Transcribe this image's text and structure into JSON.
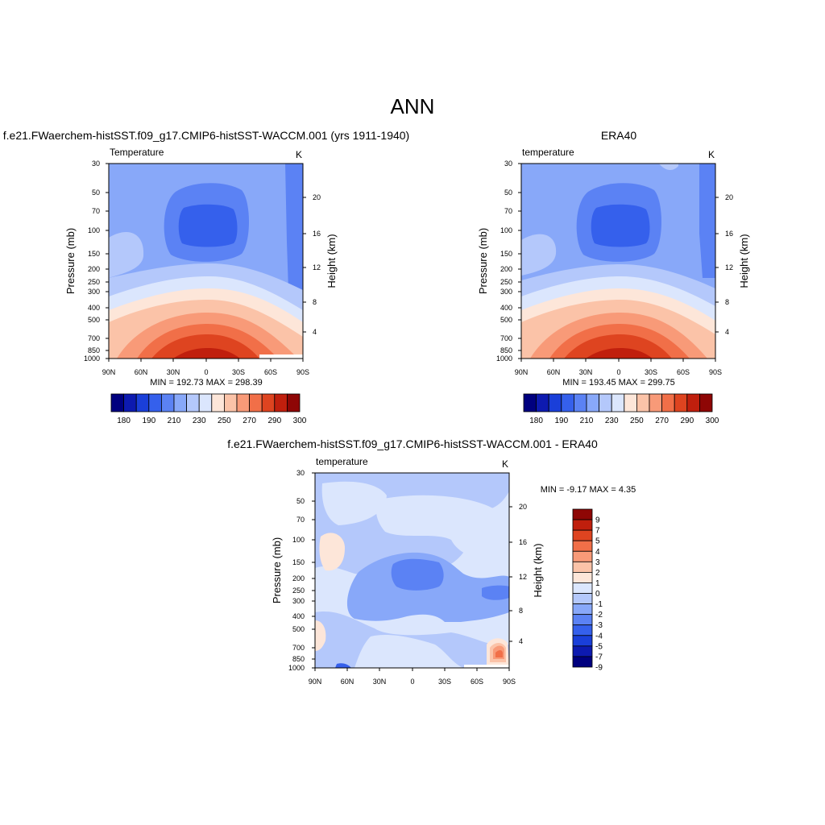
{
  "title": "ANN",
  "chart_data": [
    {
      "type": "heatmap",
      "title": "f.e21.FWaerchem-histSST.f09_g17.CMIP6-histSST-WACCM.001 (yrs 1911-1940)",
      "subtitle_left": "Temperature",
      "subtitle_right": "K",
      "ylabel": "Pressure (mb)",
      "y2label": "Height (km)",
      "xticks": [
        "90N",
        "60N",
        "30N",
        "0",
        "30S",
        "60S",
        "90S"
      ],
      "yticks": [
        "30",
        "50",
        "70",
        "100",
        "150",
        "200",
        "250",
        "300",
        "400",
        "500",
        "700",
        "850",
        "1000"
      ],
      "y2ticks": [
        "20",
        "16",
        "12",
        "8",
        "4"
      ],
      "stats": "MIN = 192.73  MAX = 298.39",
      "colorbar": {
        "labels": [
          "180",
          "190",
          "210",
          "230",
          "250",
          "270",
          "290",
          "300"
        ],
        "colors": [
          "#00007f",
          "#0d1ab0",
          "#1a3fd9",
          "#3560ec",
          "#5b82f4",
          "#88a8f9",
          "#b4c8fb",
          "#dbe6fd",
          "#fde6d9",
          "#fbc3a8",
          "#f89a78",
          "#f16f48",
          "#de4420",
          "#c01f0d",
          "#8e0605"
        ]
      }
    },
    {
      "type": "heatmap",
      "title": "ERA40",
      "subtitle_left": "temperature",
      "subtitle_right": "K",
      "ylabel": "Pressure (mb)",
      "y2label": "Height (km)",
      "xticks": [
        "90N",
        "60N",
        "30N",
        "0",
        "30S",
        "60S",
        "90S"
      ],
      "yticks": [
        "30",
        "50",
        "70",
        "100",
        "150",
        "200",
        "250",
        "300",
        "400",
        "500",
        "700",
        "850",
        "1000"
      ],
      "y2ticks": [
        "20",
        "16",
        "12",
        "8",
        "4"
      ],
      "stats": "MIN = 193.45  MAX = 299.75",
      "colorbar": {
        "labels": [
          "180",
          "190",
          "210",
          "230",
          "250",
          "270",
          "290",
          "300"
        ],
        "colors": [
          "#00007f",
          "#0d1ab0",
          "#1a3fd9",
          "#3560ec",
          "#5b82f4",
          "#88a8f9",
          "#b4c8fb",
          "#dbe6fd",
          "#fde6d9",
          "#fbc3a8",
          "#f89a78",
          "#f16f48",
          "#de4420",
          "#c01f0d",
          "#8e0605"
        ]
      }
    },
    {
      "type": "heatmap",
      "title": "f.e21.FWaerchem-histSST.f09_g17.CMIP6-histSST-WACCM.001 - ERA40",
      "subtitle_left": "temperature",
      "subtitle_right": "K",
      "ylabel": "Pressure (mb)",
      "y2label": "Height (km)",
      "xticks": [
        "90N",
        "60N",
        "30N",
        "0",
        "30S",
        "60S",
        "90S"
      ],
      "yticks": [
        "30",
        "50",
        "70",
        "100",
        "150",
        "200",
        "250",
        "300",
        "400",
        "500",
        "700",
        "850",
        "1000"
      ],
      "y2ticks": [
        "20",
        "16",
        "12",
        "8",
        "4"
      ],
      "stats": "MIN =  -9.17  MAX =   4.35",
      "colorbar": {
        "labels": [
          "9",
          "7",
          "5",
          "4",
          "3",
          "2",
          "1",
          "0",
          "-1",
          "-2",
          "-3",
          "-4",
          "-5",
          "-7",
          "-9"
        ],
        "colors": [
          "#8e0605",
          "#c01f0d",
          "#de4420",
          "#f16f48",
          "#f89a78",
          "#fbc3a8",
          "#fde6d9",
          "#dbe6fd",
          "#b4c8fb",
          "#88a8f9",
          "#5b82f4",
          "#3560ec",
          "#1a3fd9",
          "#0d1ab0",
          "#00007f"
        ]
      }
    }
  ]
}
